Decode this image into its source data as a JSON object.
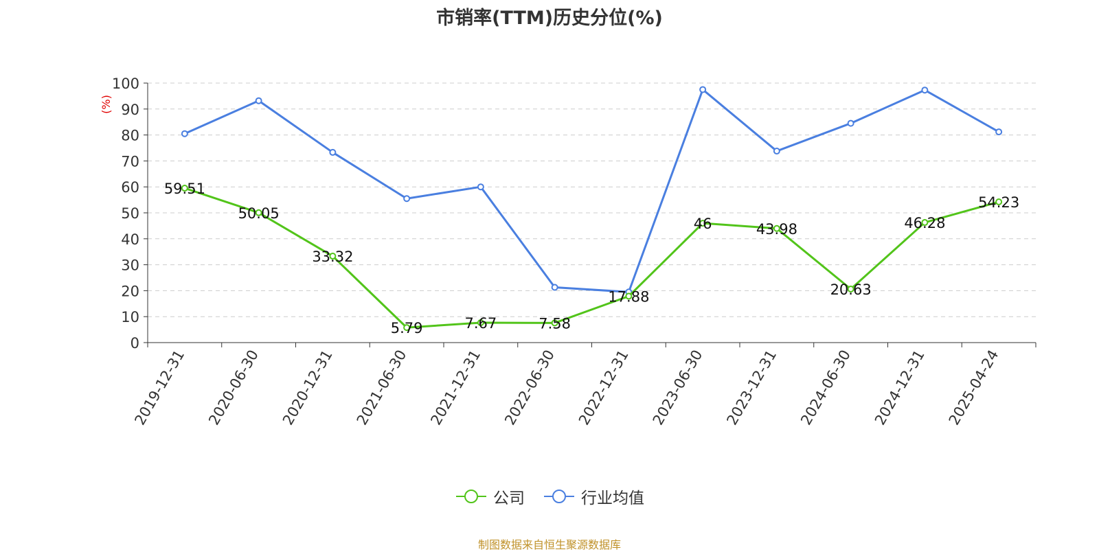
{
  "chart_data": {
    "type": "line",
    "title": "市销率(TTM)历史分位(%)",
    "ylabel": "(%)",
    "ylim": [
      0,
      100
    ],
    "yticks": [
      0,
      10,
      20,
      30,
      40,
      50,
      60,
      70,
      80,
      90,
      100
    ],
    "categories": [
      "2019-12-31",
      "2020-06-30",
      "2020-12-31",
      "2021-06-30",
      "2021-12-31",
      "2022-06-30",
      "2022-12-31",
      "2023-06-30",
      "2023-12-31",
      "2024-06-30",
      "2024-12-31",
      "2025-04-24"
    ],
    "series": [
      {
        "name": "公司",
        "color": "#52c41a",
        "show_labels": true,
        "values": [
          59.51,
          50.05,
          33.32,
          5.79,
          7.67,
          7.58,
          17.88,
          46,
          43.98,
          20.63,
          46.28,
          54.23
        ]
      },
      {
        "name": "行业均值",
        "color": "#4a7fe0",
        "show_labels": false,
        "values": [
          80.5,
          93.2,
          73.3,
          55.5,
          60.0,
          21.3,
          19.5,
          97.5,
          73.8,
          84.5,
          97.3,
          81.2
        ]
      }
    ],
    "grid": true,
    "legend_position": "bottom"
  },
  "source_note": "制图数据来自恒生聚源数据库"
}
